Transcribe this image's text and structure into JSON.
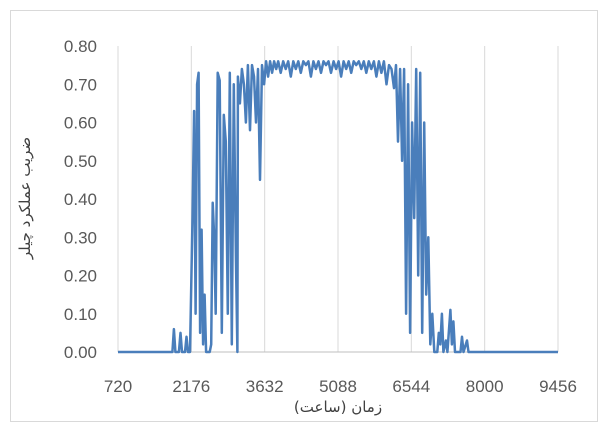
{
  "chart_data": {
    "type": "line",
    "title": "",
    "xlabel": "زمان (ساعت)",
    "ylabel": "ضریب عملکرد چیلر",
    "xlim": [
      720,
      9456
    ],
    "ylim": [
      0,
      0.8
    ],
    "x_ticks": [
      720,
      2176,
      3632,
      5088,
      6544,
      8000,
      9456
    ],
    "x_tick_labels": [
      "720",
      "2176",
      "3632",
      "5088",
      "6544",
      "8000",
      "9456"
    ],
    "y_ticks": [
      0,
      0.1,
      0.2,
      0.3,
      0.4,
      0.5,
      0.6,
      0.7,
      0.8
    ],
    "y_tick_labels": [
      "0.00",
      "0.10",
      "0.20",
      "0.30",
      "0.40",
      "0.50",
      "0.60",
      "0.70",
      "0.80"
    ],
    "grid": "vertical",
    "legend": "none",
    "series": [
      {
        "color": "#4a7ebb",
        "points": [
          [
            720,
            0
          ],
          [
            1800,
            0
          ],
          [
            1830,
            0.06
          ],
          [
            1860,
            0
          ],
          [
            1930,
            0
          ],
          [
            1960,
            0.05
          ],
          [
            1990,
            0
          ],
          [
            2050,
            0
          ],
          [
            2080,
            0.04
          ],
          [
            2110,
            0
          ],
          [
            2150,
            0
          ],
          [
            2200,
            0.35
          ],
          [
            2230,
            0.63
          ],
          [
            2260,
            0.1
          ],
          [
            2290,
            0.7
          ],
          [
            2320,
            0.73
          ],
          [
            2350,
            0.05
          ],
          [
            2380,
            0.32
          ],
          [
            2410,
            0.02
          ],
          [
            2440,
            0.15
          ],
          [
            2470,
            0
          ],
          [
            2540,
            0
          ],
          [
            2570,
            0.02
          ],
          [
            2600,
            0.39
          ],
          [
            2630,
            0.3
          ],
          [
            2660,
            0.1
          ],
          [
            2700,
            0.73
          ],
          [
            2740,
            0.71
          ],
          [
            2780,
            0.05
          ],
          [
            2820,
            0.62
          ],
          [
            2860,
            0.55
          ],
          [
            2900,
            0.1
          ],
          [
            2940,
            0.73
          ],
          [
            2980,
            0.02
          ],
          [
            3020,
            0.7
          ],
          [
            3060,
            0.25
          ],
          [
            3090,
            0
          ],
          [
            3100,
            0.72
          ],
          [
            3140,
            0.65
          ],
          [
            3180,
            0.74
          ],
          [
            3220,
            0.7
          ],
          [
            3260,
            0.6
          ],
          [
            3300,
            0.75
          ],
          [
            3340,
            0.58
          ],
          [
            3380,
            0.75
          ],
          [
            3420,
            0.72
          ],
          [
            3460,
            0.6
          ],
          [
            3500,
            0.74
          ],
          [
            3540,
            0.45
          ],
          [
            3580,
            0.75
          ],
          [
            3620,
            0.7
          ],
          [
            3660,
            0.76
          ],
          [
            3700,
            0.72
          ],
          [
            3740,
            0.76
          ],
          [
            3780,
            0.73
          ],
          [
            3820,
            0.76
          ],
          [
            3860,
            0.74
          ],
          [
            3900,
            0.76
          ],
          [
            3950,
            0.73
          ],
          [
            4000,
            0.76
          ],
          [
            4050,
            0.74
          ],
          [
            4100,
            0.76
          ],
          [
            4150,
            0.72
          ],
          [
            4200,
            0.76
          ],
          [
            4250,
            0.74
          ],
          [
            4300,
            0.76
          ],
          [
            4350,
            0.73
          ],
          [
            4400,
            0.76
          ],
          [
            4450,
            0.75
          ],
          [
            4500,
            0.76
          ],
          [
            4550,
            0.72
          ],
          [
            4600,
            0.76
          ],
          [
            4650,
            0.74
          ],
          [
            4700,
            0.76
          ],
          [
            4750,
            0.73
          ],
          [
            4800,
            0.76
          ],
          [
            4850,
            0.75
          ],
          [
            4900,
            0.76
          ],
          [
            4950,
            0.73
          ],
          [
            5000,
            0.76
          ],
          [
            5050,
            0.74
          ],
          [
            5100,
            0.76
          ],
          [
            5150,
            0.72
          ],
          [
            5200,
            0.76
          ],
          [
            5250,
            0.74
          ],
          [
            5300,
            0.76
          ],
          [
            5350,
            0.73
          ],
          [
            5400,
            0.76
          ],
          [
            5450,
            0.75
          ],
          [
            5500,
            0.76
          ],
          [
            5550,
            0.74
          ],
          [
            5600,
            0.76
          ],
          [
            5650,
            0.73
          ],
          [
            5700,
            0.76
          ],
          [
            5750,
            0.74
          ],
          [
            5800,
            0.76
          ],
          [
            5850,
            0.72
          ],
          [
            5900,
            0.76
          ],
          [
            5950,
            0.73
          ],
          [
            6000,
            0.76
          ],
          [
            6050,
            0.7
          ],
          [
            6100,
            0.75
          ],
          [
            6150,
            0.74
          ],
          [
            6200,
            0.69
          ],
          [
            6240,
            0.75
          ],
          [
            6280,
            0.55
          ],
          [
            6320,
            0.74
          ],
          [
            6360,
            0.5
          ],
          [
            6400,
            0.74
          ],
          [
            6440,
            0.1
          ],
          [
            6480,
            0.7
          ],
          [
            6520,
            0.05
          ],
          [
            6560,
            0.6
          ],
          [
            6600,
            0.35
          ],
          [
            6640,
            0.74
          ],
          [
            6680,
            0.2
          ],
          [
            6720,
            0.73
          ],
          [
            6760,
            0.05
          ],
          [
            6800,
            0.6
          ],
          [
            6840,
            0.15
          ],
          [
            6880,
            0.3
          ],
          [
            6920,
            0.02
          ],
          [
            6960,
            0.1
          ],
          [
            7000,
            0
          ],
          [
            7060,
            0
          ],
          [
            7090,
            0.05
          ],
          [
            7120,
            0.02
          ],
          [
            7150,
            0.1
          ],
          [
            7180,
            0
          ],
          [
            7230,
            0.03
          ],
          [
            7260,
            0
          ],
          [
            7320,
            0.11
          ],
          [
            7350,
            0.02
          ],
          [
            7380,
            0.08
          ],
          [
            7410,
            0
          ],
          [
            7520,
            0
          ],
          [
            7550,
            0.04
          ],
          [
            7580,
            0
          ],
          [
            7650,
            0.03
          ],
          [
            7680,
            0
          ],
          [
            9456,
            0
          ]
        ]
      }
    ]
  }
}
